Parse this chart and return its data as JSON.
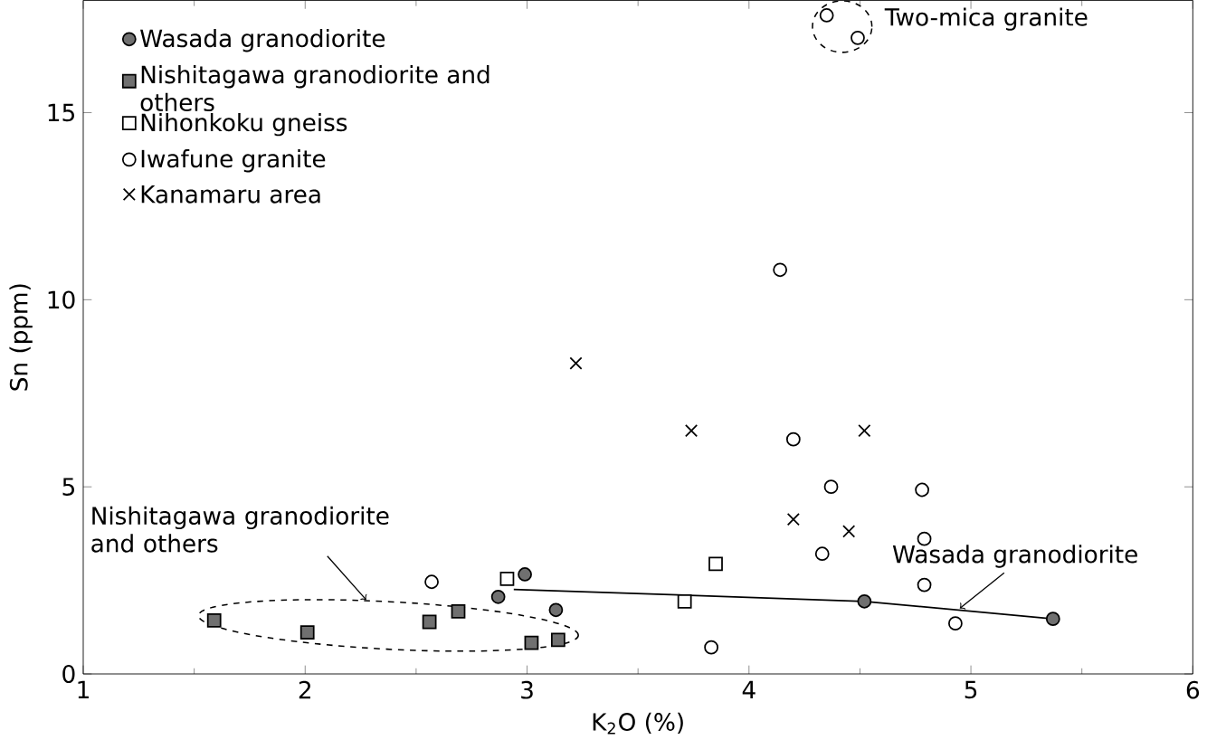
{
  "chart_data": {
    "type": "scatter",
    "xlabel": "K$_{2}$O (%)",
    "ylabel": "Sn (ppm)",
    "xlim": [
      1,
      6
    ],
    "ylim": [
      0,
      18
    ],
    "xticks": [
      1,
      2,
      3,
      4,
      5,
      6
    ],
    "yticks": [
      0,
      5,
      10,
      15
    ],
    "grid": false,
    "legend": "top left",
    "series": [
      {
        "name": "Wasada granodiorite",
        "color": "#707070",
        "marker": "circle",
        "x": [
          2.87,
          2.99,
          3.13,
          4.52,
          5.37
        ],
        "values": [
          2.06,
          2.66,
          1.71,
          1.94,
          1.47
        ]
      },
      {
        "name": "Nishitagawa granodiorite and others",
        "color": "#707070",
        "marker": "square",
        "x": [
          1.59,
          2.01,
          2.56,
          2.69,
          3.02,
          3.14
        ],
        "values": [
          1.43,
          1.11,
          1.39,
          1.67,
          0.83,
          0.91
        ]
      },
      {
        "name": "Nihonkoku gneiss",
        "color": "#ffffff",
        "marker": "square",
        "x": [
          2.91,
          3.71,
          3.85
        ],
        "values": [
          2.54,
          1.94,
          2.94
        ]
      },
      {
        "name": "Iwafune granite",
        "color": "#ffffff",
        "marker": "circle",
        "x": [
          2.57,
          4.14,
          4.2,
          4.37,
          4.33,
          4.78,
          4.79,
          4.79,
          4.93,
          3.83,
          4.35,
          4.49
        ],
        "values": [
          2.46,
          10.8,
          6.27,
          5.0,
          3.21,
          4.92,
          3.61,
          2.38,
          1.35,
          0.71,
          17.6,
          17.0
        ]
      },
      {
        "name": "Kanamaru area",
        "color": "#000000",
        "marker": "cross",
        "x": [
          3.22,
          3.74,
          4.52,
          4.2,
          4.45
        ],
        "values": [
          8.3,
          6.5,
          6.5,
          4.13,
          3.81
        ]
      },
      {
        "type": "line",
        "color": "#000000",
        "marker": "none",
        "x": [
          2.94,
          4.52,
          5.37
        ],
        "values": [
          2.26,
          1.94,
          1.47
        ]
      }
    ],
    "annotations": [
      "Nishitagawa granodiorite and others",
      {
        "text": "Wasada granodiorite",
        "x": 4.95,
        "y": 1.7
      },
      {
        "text": "Two-mica granite",
        "x": 4.42,
        "y": 17.3
      }
    ]
  }
}
